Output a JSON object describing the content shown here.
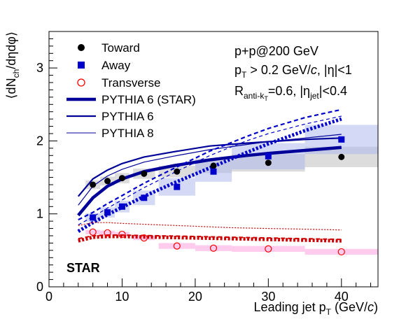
{
  "chart_data": {
    "type": "scatter",
    "xlabel": "Leading jet p",
    "xlabel_sub": "T",
    "xlabel_unit": " (GeV/",
    "xlabel_unit_italic": "c",
    "xlabel_close": ")",
    "ylabel_open": "⟨dN",
    "ylabel_sub": "ch",
    "ylabel_close": "/dηdφ⟩",
    "xlim": [
      0,
      45
    ],
    "ylim": [
      0,
      3.5
    ],
    "x_ticks": [
      "0",
      "10",
      "20",
      "30",
      "40"
    ],
    "y_ticks": [
      "0",
      "1",
      "2",
      "3"
    ],
    "legend_position": "top-left",
    "legend": {
      "toward": "Toward",
      "away": "Away",
      "transverse": "Transverse",
      "pythia6_star": "PYTHIA 6 (STAR)",
      "pythia6": "PYTHIA 6",
      "pythia8": "PYTHIA 8"
    },
    "annotations": {
      "line1": "p+p@200 GeV",
      "line2_a": "p",
      "line2_sub": "T",
      "line2_b": " > 0.2 GeV/",
      "line2_italic": "c",
      "line2_c": ", |η|<1",
      "line3_a": "R",
      "line3_sub": "anti-k",
      "line3_subsub": "T",
      "line3_b": "=0.6, |η",
      "line3_sub2": "jet",
      "line3_c": "|<0.4",
      "experiment": "STAR"
    },
    "colors": {
      "toward": "#000000",
      "away": "#0000cc",
      "transverse": "#ff0000",
      "toward_sys": "#bfbfbf",
      "away_sys": "#aab4ee",
      "transverse_sys": "#ff99dd"
    },
    "series": [
      {
        "name": "Toward",
        "marker": "circle",
        "x": [
          6,
          8,
          10,
          13,
          17.5,
          22.5,
          30,
          40
        ],
        "y": [
          1.4,
          1.45,
          1.49,
          1.55,
          1.58,
          1.66,
          1.7,
          1.78
        ],
        "sys": [
          0.06,
          0.06,
          0.07,
          0.07,
          0.08,
          0.1,
          0.12,
          0.14
        ],
        "sys_halfwidth": [
          1,
          1,
          1,
          1.5,
          2.5,
          2.5,
          5,
          5
        ]
      },
      {
        "name": "Away",
        "marker": "square",
        "x": [
          6,
          8,
          10,
          13,
          17.5,
          22.5,
          30,
          40
        ],
        "y": [
          0.95,
          1.02,
          1.1,
          1.22,
          1.37,
          1.58,
          1.79,
          2.02
        ],
        "sys": [
          0.06,
          0.07,
          0.08,
          0.1,
          0.12,
          0.14,
          0.18,
          0.2
        ],
        "sys_halfwidth": [
          1,
          1,
          1,
          1.5,
          2.5,
          2.5,
          5,
          5
        ]
      },
      {
        "name": "Transverse",
        "marker": "open-circle",
        "x": [
          6,
          8,
          10,
          13,
          17.5,
          22.5,
          30,
          40
        ],
        "y": [
          0.75,
          0.74,
          0.72,
          0.67,
          0.56,
          0.53,
          0.52,
          0.48
        ],
        "sys": [
          0.03,
          0.03,
          0.03,
          0.03,
          0.04,
          0.04,
          0.04,
          0.04
        ],
        "sys_halfwidth": [
          1,
          1,
          1,
          1.5,
          2.5,
          2.5,
          5,
          5
        ]
      }
    ],
    "curves": [
      {
        "name": "PYTHIA 6 (STAR)",
        "region": "toward",
        "style": "solid",
        "width": 4.5,
        "x": [
          4,
          6,
          8,
          10,
          13,
          17,
          22,
          27,
          30,
          35,
          40
        ],
        "y": [
          0.98,
          1.22,
          1.38,
          1.48,
          1.58,
          1.66,
          1.74,
          1.8,
          1.83,
          1.87,
          1.91
        ]
      },
      {
        "name": "PYTHIA 6",
        "region": "toward",
        "style": "solid",
        "width": 2.2,
        "x": [
          4,
          6,
          8,
          10,
          13,
          17,
          22,
          27,
          30,
          35,
          40
        ],
        "y": [
          1.24,
          1.48,
          1.6,
          1.69,
          1.78,
          1.85,
          1.93,
          1.97,
          1.99,
          2.02,
          2.04
        ]
      },
      {
        "name": "PYTHIA 8",
        "region": "toward",
        "style": "solid",
        "width": 1.2,
        "x": [
          4,
          6,
          8,
          10,
          13,
          17,
          22,
          27,
          30,
          35,
          40
        ],
        "y": [
          1.12,
          1.38,
          1.52,
          1.61,
          1.71,
          1.79,
          1.88,
          1.95,
          1.99,
          2.04,
          2.09
        ]
      },
      {
        "name": "PYTHIA 6 (STAR)",
        "region": "away",
        "style": "dotted",
        "width": 5,
        "x": [
          4,
          6,
          8,
          10,
          13,
          17,
          22,
          27,
          30,
          35,
          40
        ],
        "y": [
          0.76,
          0.88,
          0.99,
          1.09,
          1.24,
          1.42,
          1.63,
          1.84,
          1.96,
          2.14,
          2.3
        ]
      },
      {
        "name": "PYTHIA 6",
        "region": "away",
        "style": "dashed",
        "width": 2.2,
        "x": [
          4,
          6,
          8,
          10,
          13,
          17,
          22,
          27,
          30,
          35,
          40
        ],
        "y": [
          0.92,
          1.02,
          1.14,
          1.25,
          1.42,
          1.62,
          1.86,
          2.06,
          2.17,
          2.32,
          2.43
        ]
      },
      {
        "name": "PYTHIA 8",
        "region": "away",
        "style": "dashed",
        "width": 1.2,
        "x": [
          4,
          6,
          8,
          10,
          13,
          17,
          22,
          27,
          30,
          35,
          40
        ],
        "y": [
          0.85,
          0.96,
          1.08,
          1.19,
          1.36,
          1.56,
          1.8,
          2.0,
          2.1,
          2.23,
          2.34
        ]
      },
      {
        "name": "PYTHIA 6 (STAR)",
        "region": "transverse",
        "style": "dotted",
        "width": 5,
        "x": [
          4,
          6,
          8,
          10,
          15,
          20,
          25,
          30,
          35,
          40
        ],
        "y": [
          0.63,
          0.68,
          0.69,
          0.69,
          0.68,
          0.67,
          0.66,
          0.65,
          0.64,
          0.63
        ]
      },
      {
        "name": "PYTHIA 6",
        "region": "transverse",
        "style": "dashed",
        "width": 2,
        "x": [
          4,
          6,
          8,
          10,
          15,
          20,
          25,
          30,
          35,
          40
        ],
        "y": [
          0.66,
          0.7,
          0.71,
          0.71,
          0.7,
          0.69,
          0.68,
          0.67,
          0.66,
          0.65
        ]
      },
      {
        "name": "PYTHIA 8",
        "region": "transverse",
        "style": "dotted",
        "width": 1.2,
        "x": [
          4,
          6,
          8,
          10,
          15,
          20,
          25,
          30,
          35,
          40
        ],
        "y": [
          0.84,
          0.88,
          0.88,
          0.87,
          0.85,
          0.83,
          0.81,
          0.8,
          0.79,
          0.78
        ]
      }
    ]
  }
}
